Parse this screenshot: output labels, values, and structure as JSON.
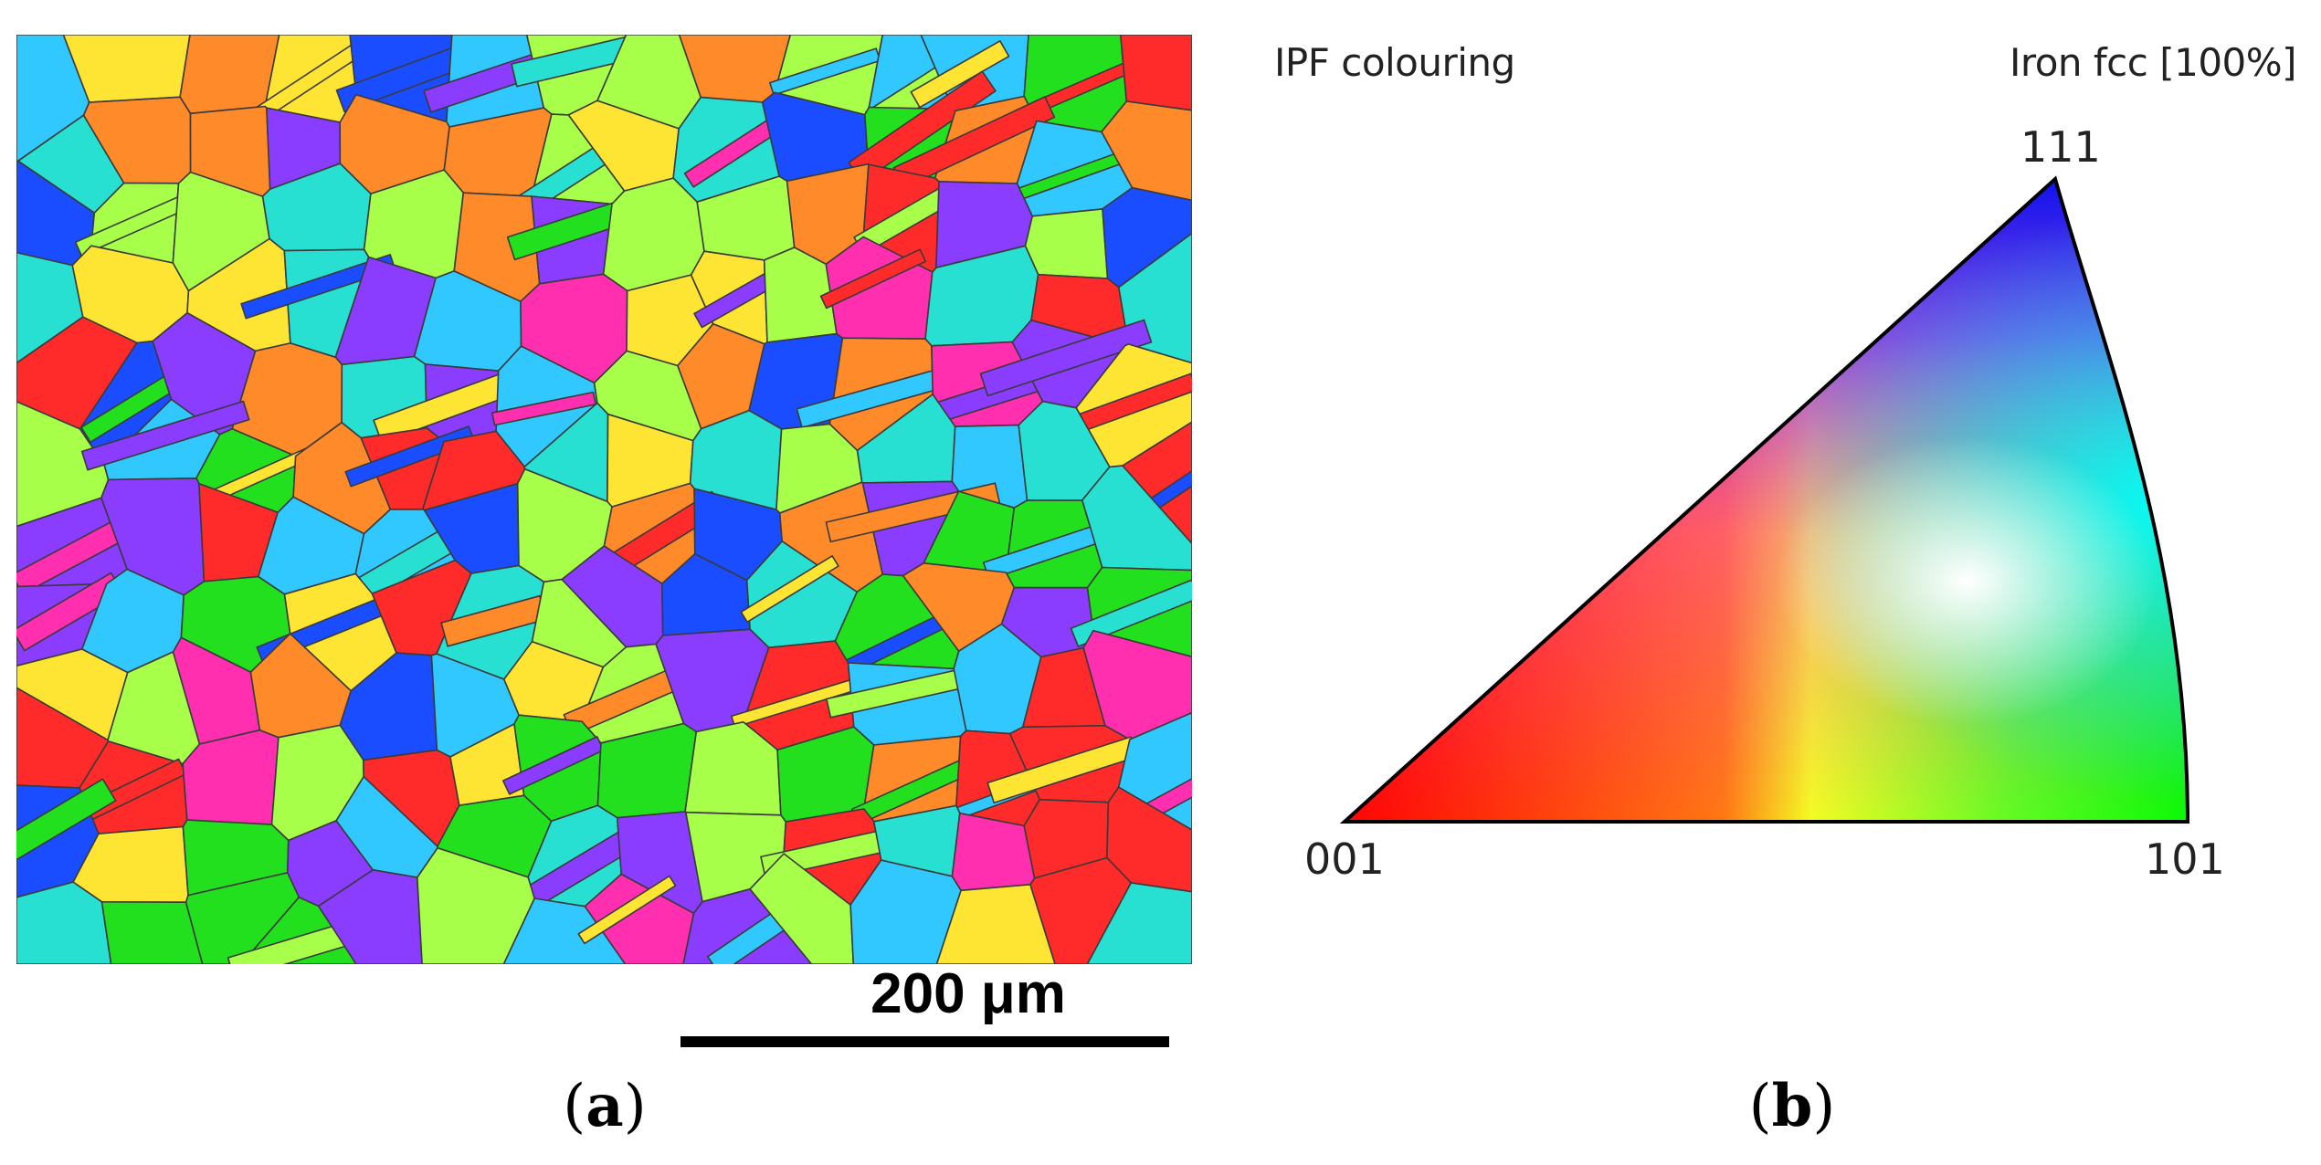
{
  "figure": {
    "panel_a": {
      "label_prefix": "(",
      "label": "a",
      "label_suffix": ")",
      "scale_bar_label": "200 μm",
      "description_colors": [
        "#ff2a2a",
        "#22e01e",
        "#1a4dff",
        "#ff2fb0",
        "#27e0d2",
        "#ffe533",
        "#8a3cff",
        "#ff8a2a",
        "#a8ff4a",
        "#30c8ff"
      ]
    },
    "panel_b": {
      "label_prefix": "(",
      "label": "b",
      "label_suffix": ")",
      "title": "IPF colouring",
      "phase": "Iron fcc [100%]",
      "pole_top": "111",
      "pole_left": "001",
      "pole_right": "101",
      "corner_colors": {
        "001": "#ff0000",
        "101": "#00ff00",
        "111": "#0000ff"
      }
    }
  }
}
